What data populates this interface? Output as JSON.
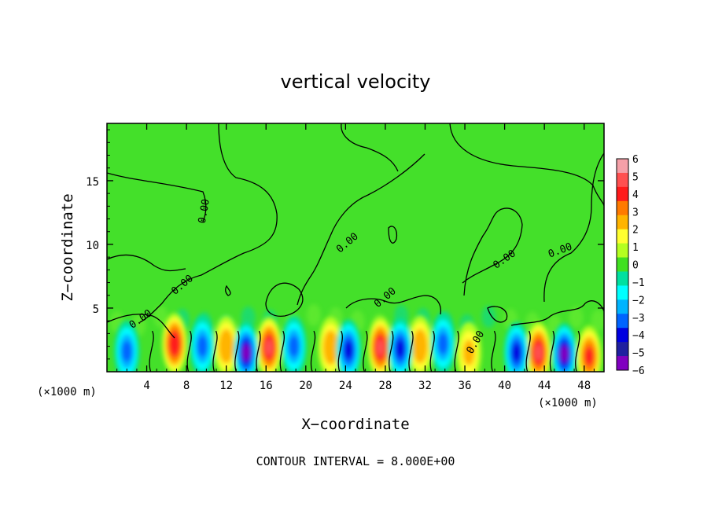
{
  "chart_data": {
    "type": "heatmap",
    "title": "vertical velocity",
    "xlabel": "X−coordinate",
    "ylabel": "Z−coordinate",
    "x_unit": "(×1000 m)",
    "y_unit": "(×1000 m)",
    "xlim": [
      0,
      50
    ],
    "ylim": [
      0,
      19.5
    ],
    "x_ticks": [
      4,
      8,
      12,
      16,
      20,
      24,
      28,
      32,
      36,
      40,
      44,
      48
    ],
    "y_ticks": [
      5,
      10,
      15
    ],
    "colorbar": {
      "range": [
        -6,
        6
      ],
      "ticks": [
        6,
        5,
        4,
        3,
        2,
        1,
        0,
        -1,
        -2,
        -3,
        -4,
        -5,
        -6
      ],
      "tick_labels": [
        "6",
        "5",
        "4",
        "3",
        "2",
        "1",
        "0",
        "−1",
        "−2",
        "−3",
        "−4",
        "−5",
        "−6"
      ],
      "colors": [
        "#f5a0a8",
        "#ff5050",
        "#ff1a1a",
        "#ff7a00",
        "#ffb400",
        "#ffff30",
        "#b4ff20",
        "#40e020",
        "#00e0a0",
        "#00ffff",
        "#00b4ff",
        "#0064ff",
        "#0000e0",
        "#2020a0",
        "#8000c0"
      ]
    },
    "contour_level_label": "0.00",
    "contour_labels": [
      {
        "x": 9.8,
        "z": 12.6,
        "text": "0.00",
        "angle": -80
      },
      {
        "x": 7.6,
        "z": 6.8,
        "text": "0.00",
        "angle": -40
      },
      {
        "x": 3.4,
        "z": 4.1,
        "text": "0.00",
        "angle": -35
      },
      {
        "x": 24.2,
        "z": 10.1,
        "text": "0.00",
        "angle": -40
      },
      {
        "x": 28.0,
        "z": 5.8,
        "text": "0.00",
        "angle": -40
      },
      {
        "x": 40.0,
        "z": 8.8,
        "text": "0.00",
        "angle": -35
      },
      {
        "x": 45.6,
        "z": 9.5,
        "text": "0.00",
        "angle": -20
      },
      {
        "x": 37.1,
        "z": 2.3,
        "text": "0.00",
        "angle": -60
      }
    ],
    "updraft_cells": [
      {
        "x": 6.8,
        "z": 2.2,
        "w": 4.6
      },
      {
        "x": 12.0,
        "z": 2.0,
        "w": 2.6
      },
      {
        "x": 16.3,
        "z": 1.9,
        "w": 5.2
      },
      {
        "x": 22.5,
        "z": 1.9,
        "w": 3.0
      },
      {
        "x": 27.5,
        "z": 1.9,
        "w": 5.0
      },
      {
        "x": 31.5,
        "z": 2.0,
        "w": 2.6
      },
      {
        "x": 36.4,
        "z": 1.5,
        "w": 2.4
      },
      {
        "x": 43.4,
        "z": 1.5,
        "w": 5.4
      },
      {
        "x": 48.5,
        "z": 1.2,
        "w": 4.0
      }
    ],
    "downdraft_cells": [
      {
        "x": 2.0,
        "z": 1.6,
        "w": -2.6
      },
      {
        "x": 9.6,
        "z": 2.0,
        "w": -2.8
      },
      {
        "x": 14.0,
        "z": 1.5,
        "w": -4.6
      },
      {
        "x": 18.8,
        "z": 2.0,
        "w": -3.2
      },
      {
        "x": 24.3,
        "z": 1.7,
        "w": -4.4
      },
      {
        "x": 29.5,
        "z": 1.8,
        "w": -3.6
      },
      {
        "x": 33.8,
        "z": 2.2,
        "w": -2.8
      },
      {
        "x": 41.2,
        "z": 1.5,
        "w": -3.8
      },
      {
        "x": 46.0,
        "z": 1.4,
        "w": -4.8
      }
    ],
    "footer": "CONTOUR INTERVAL = 8.000E+00"
  }
}
